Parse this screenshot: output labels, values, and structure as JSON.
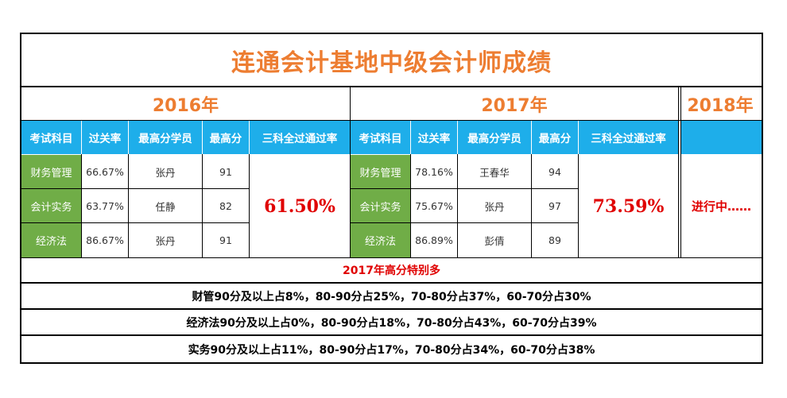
{
  "title": "连通会计基地中级会计师成绩",
  "years": [
    "2016年",
    "2017年",
    "2018年"
  ],
  "headers": [
    "考试科目",
    "过关率",
    "最高分学员",
    "最高分",
    "三科全过通过率"
  ],
  "y2016": {
    "rows": [
      {
        "subject": "财务管理",
        "rate": "66.67%",
        "student": "张丹",
        "score": "91"
      },
      {
        "subject": "会计实务",
        "rate": "63.77%",
        "student": "任静",
        "score": "82"
      },
      {
        "subject": "经济法",
        "rate": "86.67%",
        "student": "张丹",
        "score": "91"
      }
    ],
    "all_pass": "61.50%"
  },
  "y2017": {
    "rows": [
      {
        "subject": "财务管理",
        "rate": "78.16%",
        "student": "王春华",
        "score": "94"
      },
      {
        "subject": "会计实务",
        "rate": "75.67%",
        "student": "张丹",
        "score": "97"
      },
      {
        "subject": "经济法",
        "rate": "86.89%",
        "student": "彭倩",
        "score": "89"
      }
    ],
    "all_pass": "73.59%"
  },
  "y2018": {
    "status": "进行中……"
  },
  "notes": {
    "highlight": "2017年高分特别多",
    "finance": "财管90分及以上占8%，80-90分占25%，70-80分占37%，60-70分占30%",
    "law": "经济法90分及以上占0%，80-90分占18%，70-80分占43%，60-70分占39%",
    "practice": "实务90分及以上占11%，80-90分占17%，70-80分占34%，60-70分占38%"
  },
  "colors": {
    "accent": "#ed7d31",
    "header": "#1eaeea",
    "subject": "#70ad47",
    "highlight": "#e00000"
  }
}
